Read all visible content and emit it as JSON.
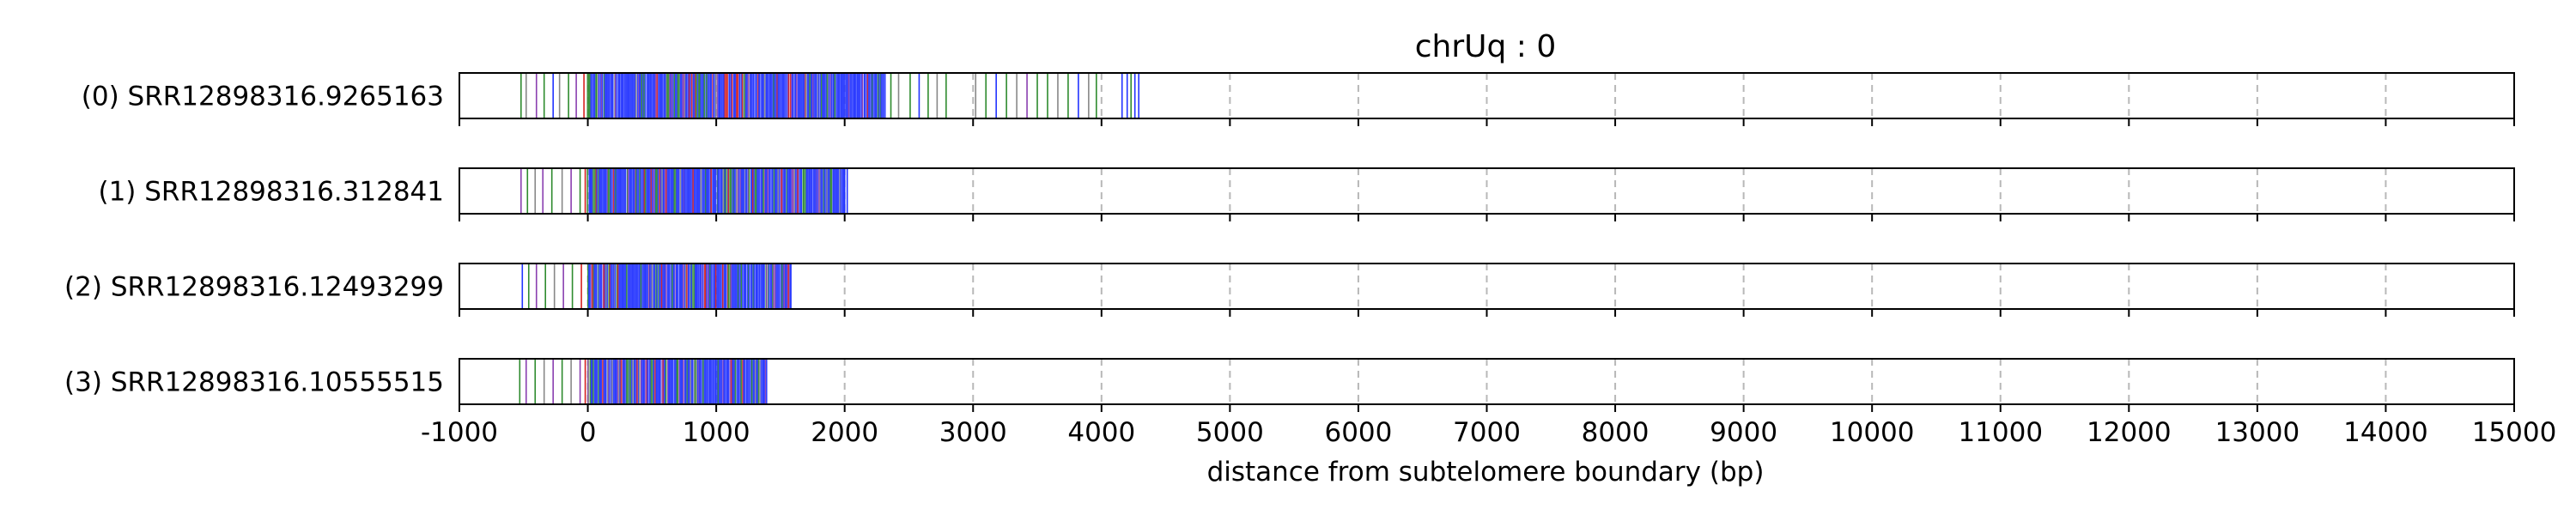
{
  "chart_data": {
    "type": "strip",
    "title": "chrUq : 0",
    "xlabel": "distance from subtelomere boundary (bp)",
    "ylabel": "",
    "xlim": [
      -1000,
      15000
    ],
    "xticks": [
      -1000,
      0,
      1000,
      2000,
      3000,
      4000,
      5000,
      6000,
      7000,
      8000,
      9000,
      10000,
      11000,
      12000,
      13000,
      14000,
      15000
    ],
    "xtick_labels": [
      "-1000",
      "0",
      "1000",
      "2000",
      "3000",
      "4000",
      "5000",
      "6000",
      "7000",
      "8000",
      "9000",
      "10000",
      "11000",
      "12000",
      "13000",
      "14000",
      "15000"
    ],
    "grid": "vertical-dashed",
    "colors": {
      "blue": "#2233ff",
      "green": "#2e8b2e",
      "purple": "#8a3fb0",
      "red": "#d62020",
      "gray": "#888888"
    },
    "tracks": [
      {
        "label": "(0) SRR12898316.9265163",
        "read_start": -520,
        "read_end": 4300,
        "sparse_marks": [
          {
            "x": -520,
            "c": "green"
          },
          {
            "x": -480,
            "c": "gray"
          },
          {
            "x": -400,
            "c": "purple"
          },
          {
            "x": -340,
            "c": "green"
          },
          {
            "x": -270,
            "c": "blue"
          },
          {
            "x": -220,
            "c": "gray"
          },
          {
            "x": -150,
            "c": "green"
          },
          {
            "x": -90,
            "c": "purple"
          },
          {
            "x": -30,
            "c": "red"
          },
          {
            "x": 2360,
            "c": "green"
          },
          {
            "x": 2420,
            "c": "gray"
          },
          {
            "x": 2510,
            "c": "green"
          },
          {
            "x": 2580,
            "c": "blue"
          },
          {
            "x": 2650,
            "c": "green"
          },
          {
            "x": 2720,
            "c": "gray"
          },
          {
            "x": 2790,
            "c": "green"
          },
          {
            "x": 3020,
            "c": "gray"
          },
          {
            "x": 3100,
            "c": "green"
          },
          {
            "x": 3180,
            "c": "blue"
          },
          {
            "x": 3260,
            "c": "green"
          },
          {
            "x": 3340,
            "c": "gray"
          },
          {
            "x": 3420,
            "c": "purple"
          },
          {
            "x": 3500,
            "c": "green"
          },
          {
            "x": 3580,
            "c": "green"
          },
          {
            "x": 3660,
            "c": "gray"
          },
          {
            "x": 3740,
            "c": "green"
          },
          {
            "x": 3820,
            "c": "blue"
          },
          {
            "x": 3900,
            "c": "gray"
          },
          {
            "x": 3960,
            "c": "green"
          },
          {
            "x": 4160,
            "c": "blue"
          },
          {
            "x": 4200,
            "c": "blue"
          },
          {
            "x": 4230,
            "c": "green"
          },
          {
            "x": 4260,
            "c": "blue"
          },
          {
            "x": 4290,
            "c": "blue"
          }
        ],
        "dense_region": [
          0,
          2320
        ]
      },
      {
        "label": "(1) SRR12898316.312841",
        "read_start": -520,
        "read_end": 2030,
        "sparse_marks": [
          {
            "x": -520,
            "c": "purple"
          },
          {
            "x": -470,
            "c": "green"
          },
          {
            "x": -410,
            "c": "gray"
          },
          {
            "x": -350,
            "c": "purple"
          },
          {
            "x": -280,
            "c": "green"
          },
          {
            "x": -200,
            "c": "gray"
          },
          {
            "x": -130,
            "c": "purple"
          },
          {
            "x": -60,
            "c": "green"
          },
          {
            "x": -20,
            "c": "red"
          },
          {
            "x": 2000,
            "c": "blue"
          },
          {
            "x": 2020,
            "c": "blue"
          }
        ],
        "dense_region": [
          0,
          2000
        ]
      },
      {
        "label": "(2) SRR12898316.12493299",
        "read_start": -510,
        "read_end": 1600,
        "sparse_marks": [
          {
            "x": -510,
            "c": "blue"
          },
          {
            "x": -460,
            "c": "green"
          },
          {
            "x": -400,
            "c": "purple"
          },
          {
            "x": -330,
            "c": "green"
          },
          {
            "x": -260,
            "c": "gray"
          },
          {
            "x": -190,
            "c": "purple"
          },
          {
            "x": -120,
            "c": "green"
          },
          {
            "x": -50,
            "c": "red"
          }
        ],
        "dense_region": [
          0,
          1590
        ]
      },
      {
        "label": "(3) SRR12898316.10555515",
        "read_start": -530,
        "read_end": 1410,
        "sparse_marks": [
          {
            "x": -530,
            "c": "green"
          },
          {
            "x": -480,
            "c": "purple"
          },
          {
            "x": -410,
            "c": "green"
          },
          {
            "x": -340,
            "c": "gray"
          },
          {
            "x": -270,
            "c": "purple"
          },
          {
            "x": -200,
            "c": "green"
          },
          {
            "x": -130,
            "c": "gray"
          },
          {
            "x": -60,
            "c": "purple"
          },
          {
            "x": -20,
            "c": "red"
          }
        ],
        "dense_region": [
          0,
          1400
        ]
      }
    ]
  }
}
